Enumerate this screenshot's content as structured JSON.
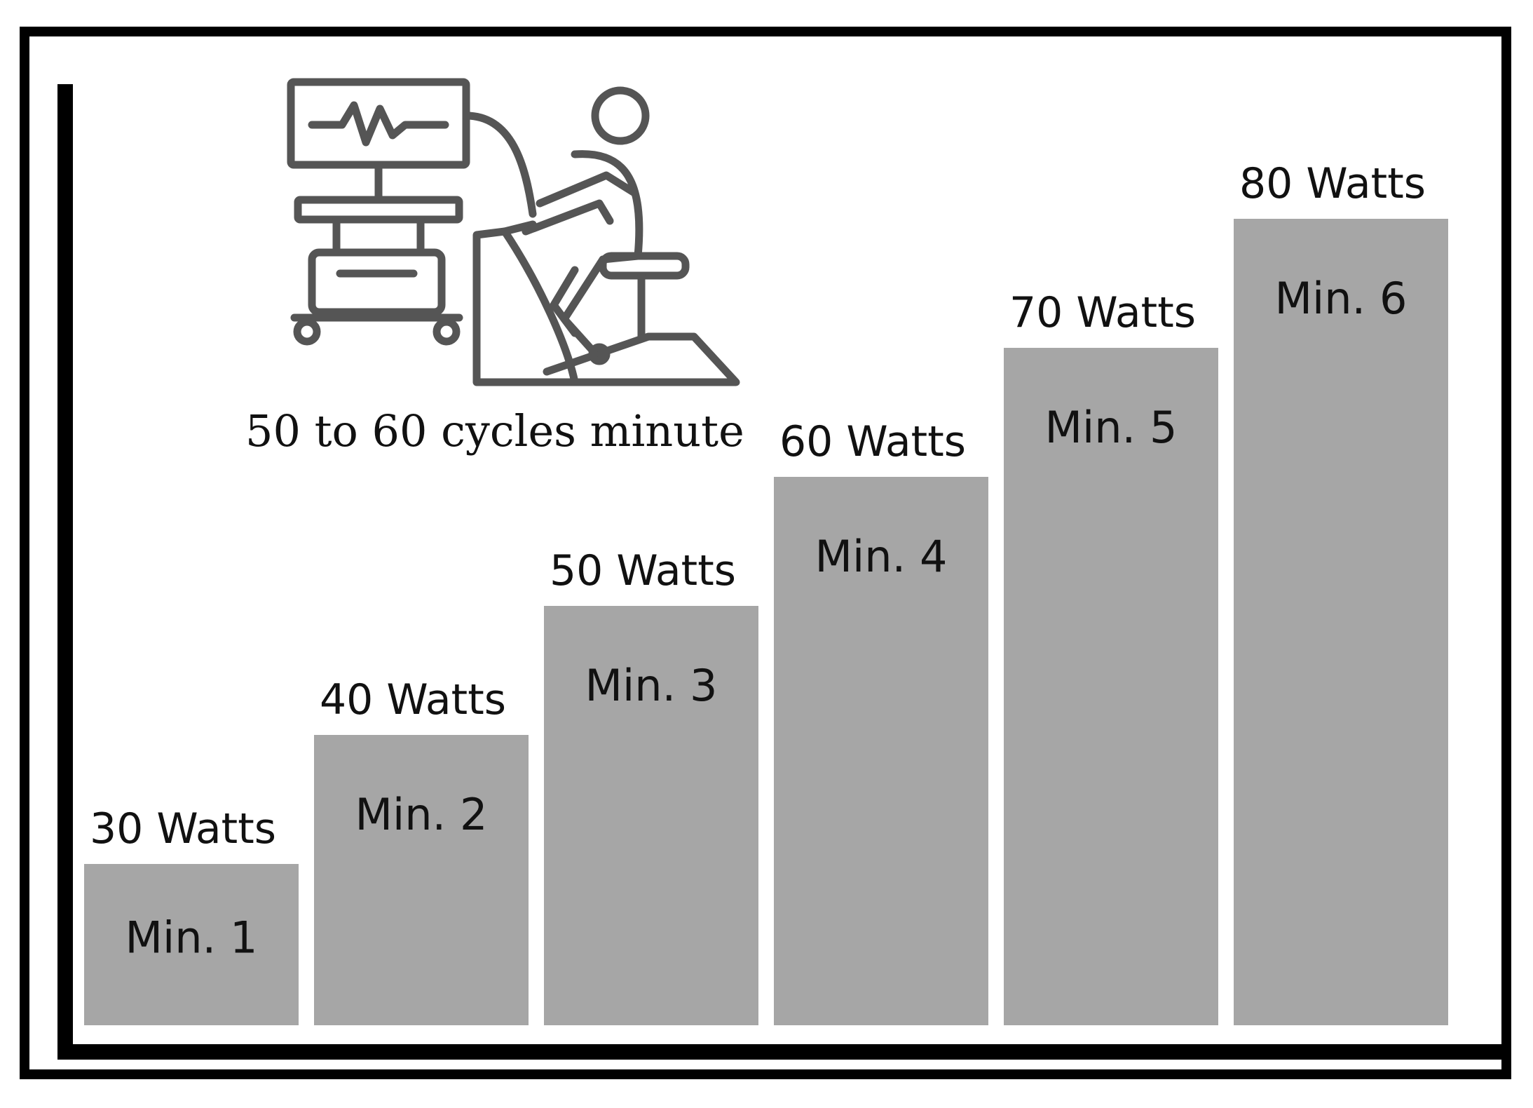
{
  "cadence_label": "50 to 60 cycles minute",
  "illustration_icon": "ecg-monitor-and-exercise-bike-icon",
  "colors": {
    "bar": "#a6a6a6",
    "frame": "#000000",
    "text": "#111111"
  },
  "chart_data": {
    "type": "bar",
    "categories": [
      "Min. 1",
      "Min. 2",
      "Min. 3",
      "Min. 4",
      "Min. 5",
      "Min. 6"
    ],
    "values": [
      30,
      40,
      50,
      60,
      70,
      80
    ],
    "value_labels": [
      "30 Watts",
      "40 Watts",
      "50 Watts",
      "60 Watts",
      "70 Watts",
      "80 Watts"
    ],
    "ylim": [
      0,
      80
    ],
    "grid": false,
    "legend": "none"
  }
}
